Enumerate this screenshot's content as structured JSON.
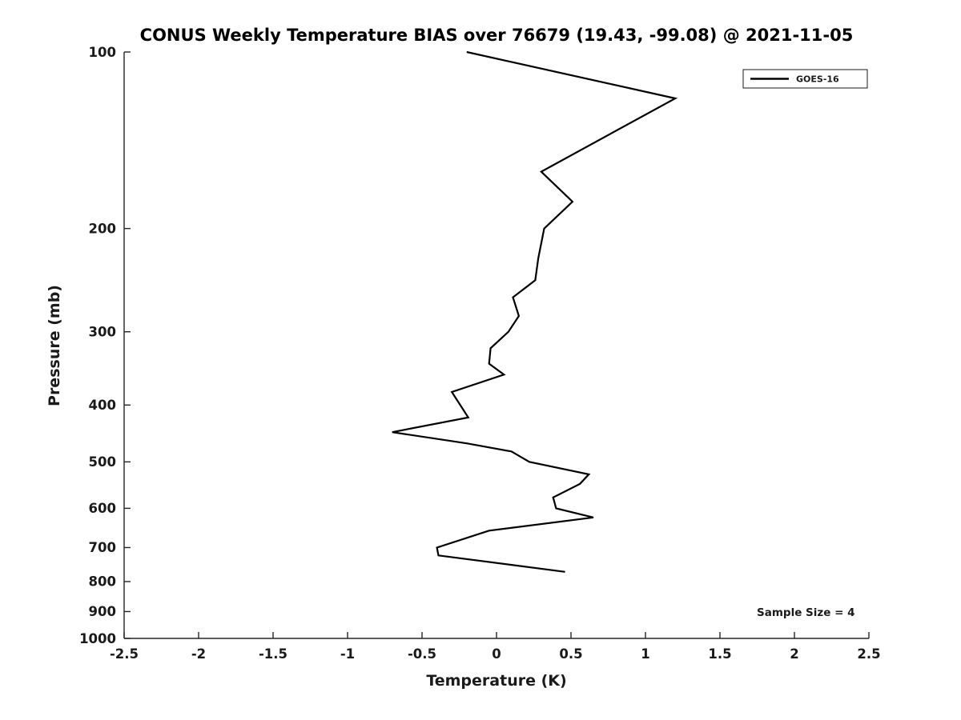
{
  "chart_data": {
    "type": "line",
    "title": "CONUS Weekly Temperature BIAS over 76679 (19.43, -99.08) @ 2021-11-05",
    "xlabel": "Temperature (K)",
    "ylabel": "Pressure (mb)",
    "xlim": [
      -2.5,
      2.5
    ],
    "ylim": [
      100,
      1000
    ],
    "y_scale": "log",
    "y_inverted": true,
    "grid": false,
    "x_ticks": [
      "-2.5",
      "-2",
      "-1.5",
      "-1",
      "-0.5",
      "0",
      "0.5",
      "1",
      "1.5",
      "2",
      "2.5"
    ],
    "y_ticks": [
      "100",
      "200",
      "300",
      "400",
      "500",
      "600",
      "700",
      "800",
      "900",
      "1000"
    ],
    "line_color": "#000000",
    "line_width": 2.2,
    "legend": {
      "position": "top-right",
      "entries": [
        {
          "label": "GOES-16",
          "color": "#000000"
        }
      ]
    },
    "annotation": {
      "text": "Sample Size = 4"
    },
    "series": [
      {
        "name": "GOES-16",
        "points_format": "[temperature_K, pressure_mb]",
        "points": [
          [
            -0.2,
            100
          ],
          [
            1.2,
            120
          ],
          [
            0.3,
            160
          ],
          [
            0.51,
            180
          ],
          [
            0.32,
            200
          ],
          [
            0.28,
            225
          ],
          [
            0.26,
            245
          ],
          [
            0.11,
            262
          ],
          [
            0.15,
            282
          ],
          [
            0.08,
            300
          ],
          [
            -0.04,
            320
          ],
          [
            -0.05,
            340
          ],
          [
            0.05,
            355
          ],
          [
            -0.3,
            380
          ],
          [
            -0.19,
            420
          ],
          [
            -0.7,
            445
          ],
          [
            -0.2,
            465
          ],
          [
            0.1,
            480
          ],
          [
            0.22,
            500
          ],
          [
            0.62,
            525
          ],
          [
            0.56,
            545
          ],
          [
            0.38,
            575
          ],
          [
            0.4,
            600
          ],
          [
            0.65,
            622
          ],
          [
            -0.05,
            655
          ],
          [
            -0.4,
            700
          ],
          [
            -0.39,
            722
          ],
          [
            0.46,
            770
          ]
        ]
      }
    ]
  }
}
